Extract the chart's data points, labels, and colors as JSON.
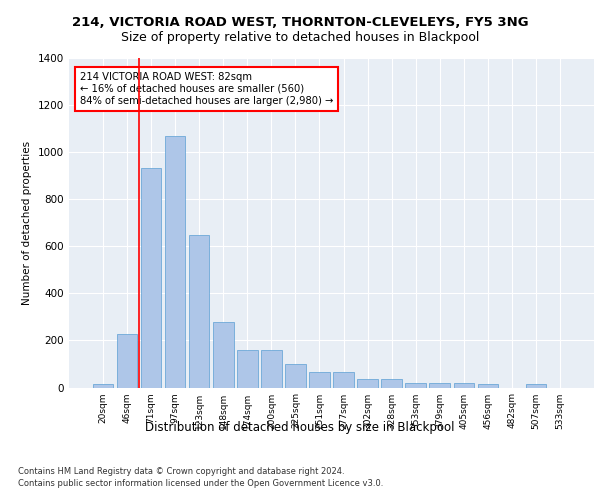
{
  "title1": "214, VICTORIA ROAD WEST, THORNTON-CLEVELEYS, FY5 3NG",
  "title2": "Size of property relative to detached houses in Blackpool",
  "xlabel": "Distribution of detached houses by size in Blackpool",
  "ylabel": "Number of detached properties",
  "footnote1": "Contains HM Land Registry data © Crown copyright and database right 2024.",
  "footnote2": "Contains public sector information licensed under the Open Government Licence v3.0.",
  "annotation_line1": "214 VICTORIA ROAD WEST: 82sqm",
  "annotation_line2": "← 16% of detached houses are smaller (560)",
  "annotation_line3": "84% of semi-detached houses are larger (2,980) →",
  "bar_values": [
    15,
    225,
    930,
    1065,
    645,
    280,
    160,
    160,
    100,
    65,
    65,
    35,
    35,
    20,
    20,
    20,
    15,
    0,
    15,
    0
  ],
  "categories": [
    "20sqm",
    "46sqm",
    "71sqm",
    "97sqm",
    "123sqm",
    "148sqm",
    "174sqm",
    "200sqm",
    "225sqm",
    "251sqm",
    "277sqm",
    "302sqm",
    "328sqm",
    "353sqm",
    "379sqm",
    "405sqm",
    "456sqm",
    "482sqm",
    "507sqm",
    "533sqm"
  ],
  "bar_color": "#aec6e8",
  "bar_edge_color": "#5a9fd4",
  "red_line_x": 1.5,
  "ylim": [
    0,
    1400
  ],
  "yticks": [
    0,
    200,
    400,
    600,
    800,
    1000,
    1200,
    1400
  ],
  "plot_bg_color": "#e8eef5",
  "annotation_box_color": "white",
  "annotation_box_edge": "red",
  "red_line_color": "red"
}
